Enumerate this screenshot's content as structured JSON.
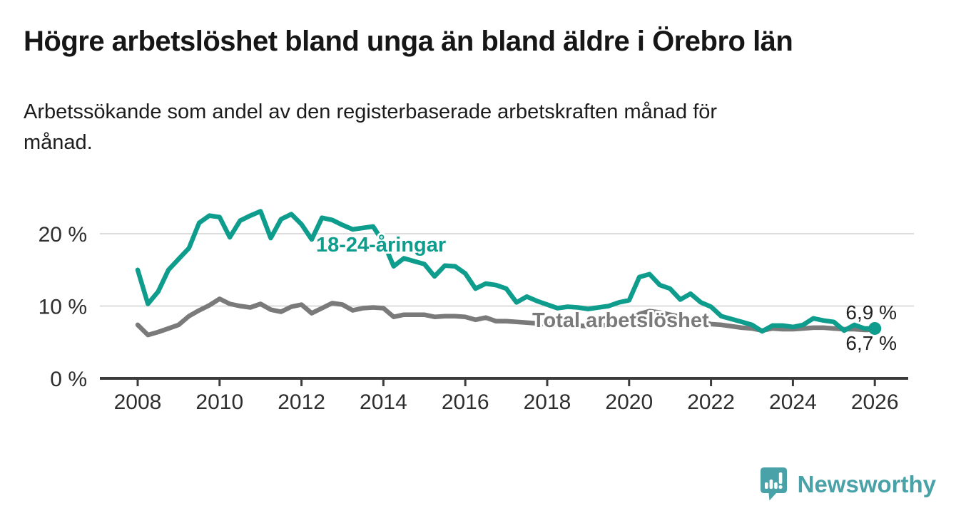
{
  "header": {
    "title": "Högre arbetslöshet bland unga än bland äldre i Örebro län",
    "subtitle_lines": [
      "Arbetssökande som andel av den registerbaserade arbetskraften månad för",
      "månad."
    ]
  },
  "chart_data": {
    "type": "line",
    "title": "Högre arbetslöshet bland unga än bland äldre i Örebro län",
    "subtitle": "Arbetssökande som andel av den registerbaserade arbetskraften månad för månad.",
    "xlabel": "",
    "ylabel": "",
    "x_range": [
      2007.1,
      2026.8
    ],
    "ylim": [
      0,
      24
    ],
    "grid": "horizontal",
    "legend_position": "inline-labels",
    "x_ticks": [
      2008,
      2010,
      2012,
      2014,
      2016,
      2018,
      2020,
      2022,
      2024,
      2026
    ],
    "y_ticks": [
      {
        "value": 0,
        "label": "0 %"
      },
      {
        "value": 10,
        "label": "10 %"
      },
      {
        "value": 20,
        "label": "20 %"
      }
    ],
    "x": [
      2008,
      2008.25,
      2008.5,
      2008.75,
      2009,
      2009.25,
      2009.5,
      2009.75,
      2010,
      2010.25,
      2010.5,
      2010.75,
      2011,
      2011.25,
      2011.5,
      2011.75,
      2012,
      2012.25,
      2012.5,
      2012.75,
      2013,
      2013.25,
      2013.5,
      2013.75,
      2014,
      2014.25,
      2014.5,
      2014.75,
      2015,
      2015.25,
      2015.5,
      2015.75,
      2016,
      2016.25,
      2016.5,
      2016.75,
      2017,
      2017.25,
      2017.5,
      2017.75,
      2018,
      2018.25,
      2018.5,
      2018.75,
      2019,
      2019.25,
      2019.5,
      2019.75,
      2020,
      2020.25,
      2020.5,
      2020.75,
      2021,
      2021.25,
      2021.5,
      2021.75,
      2022,
      2022.25,
      2022.5,
      2022.75,
      2023,
      2023.25,
      2023.5,
      2023.75,
      2024,
      2024.25,
      2024.5,
      2024.75,
      2025,
      2025.25,
      2025.5,
      2025.75,
      2026
    ],
    "series": [
      {
        "name": "18-24-åringar",
        "color": "#0e9c8d",
        "end_label": "6,9 %",
        "end_dot": true,
        "values": [
          15.0,
          10.3,
          12.0,
          15.0,
          16.5,
          18.0,
          21.5,
          22.5,
          22.3,
          19.5,
          21.8,
          22.5,
          23.1,
          19.4,
          22.0,
          22.7,
          21.3,
          19.2,
          22.2,
          21.9,
          21.2,
          20.6,
          20.8,
          21.0,
          18.8,
          15.5,
          16.6,
          16.2,
          15.8,
          14.1,
          15.6,
          15.5,
          14.5,
          12.4,
          13.1,
          12.9,
          12.4,
          10.5,
          11.3,
          10.7,
          10.2,
          9.7,
          9.9,
          9.8,
          9.6,
          9.8,
          10.0,
          10.5,
          10.8,
          14.0,
          14.4,
          12.9,
          12.4,
          10.9,
          11.7,
          10.5,
          9.9,
          8.6,
          8.2,
          7.8,
          7.4,
          6.5,
          7.3,
          7.3,
          7.1,
          7.4,
          8.3,
          8.0,
          7.8,
          6.6,
          7.4,
          6.9,
          6.9
        ]
      },
      {
        "name": "Total arbetslöshet",
        "color": "#7a7a7a",
        "end_label": "6,7 %",
        "end_dot": false,
        "values": [
          7.4,
          6.0,
          6.4,
          6.9,
          7.4,
          8.6,
          9.4,
          10.1,
          11.0,
          10.3,
          10.0,
          9.8,
          10.3,
          9.5,
          9.2,
          9.9,
          10.2,
          9.0,
          9.7,
          10.4,
          10.2,
          9.4,
          9.7,
          9.8,
          9.7,
          8.5,
          8.8,
          8.8,
          8.8,
          8.5,
          8.6,
          8.6,
          8.5,
          8.1,
          8.4,
          7.9,
          7.9,
          7.8,
          7.7,
          7.6,
          7.5,
          7.4,
          7.3,
          7.3,
          7.2,
          7.3,
          7.4,
          7.6,
          7.8,
          8.9,
          9.3,
          9.1,
          8.8,
          8.5,
          8.2,
          7.9,
          7.5,
          7.4,
          7.2,
          7.0,
          6.9,
          6.6,
          6.9,
          6.8,
          6.8,
          6.9,
          7.0,
          7.0,
          6.9,
          6.8,
          6.8,
          6.7,
          6.7
        ]
      }
    ],
    "colors": {
      "grid": "#dcdcdc",
      "axis": "#3c3c3c",
      "tick_text": "#2e2e2e",
      "young_line": "#0e9c8d",
      "total_line": "#7a7a7a"
    }
  },
  "footer": {
    "brand": "Newsworthy",
    "brand_color": "#48a2a8",
    "logo_icon": "speech-bubble-bar-chart"
  }
}
